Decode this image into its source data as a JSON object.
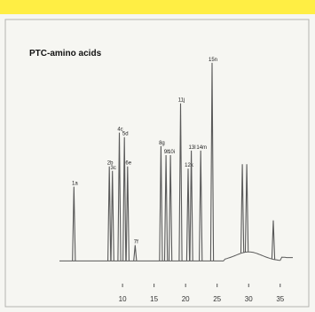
{
  "chart_data": {
    "type": "line",
    "title": "PTC-amino acids",
    "xlabel": "",
    "ylabel": "",
    "xlim": [
      0,
      37
    ],
    "ylim": [
      0,
      100
    ],
    "grid": false,
    "x_ticks": [
      "10",
      "15",
      "20",
      "25",
      "30",
      "35"
    ],
    "baseline": 3,
    "peaks": [
      {
        "x": 2.3,
        "height": 36,
        "label": "1a"
      },
      {
        "x": 7.9,
        "height": 45,
        "label": "2b"
      },
      {
        "x": 8.4,
        "height": 43,
        "label": "3c"
      },
      {
        "x": 9.5,
        "height": 60,
        "label": "4c"
      },
      {
        "x": 10.3,
        "height": 58,
        "label": "5d"
      },
      {
        "x": 10.8,
        "height": 45,
        "label": "6e"
      },
      {
        "x": 12.0,
        "height": 10,
        "label": "7f"
      },
      {
        "x": 16.1,
        "height": 54,
        "label": "8g"
      },
      {
        "x": 16.9,
        "height": 50,
        "label": "9h"
      },
      {
        "x": 17.6,
        "height": 50,
        "label": "10i"
      },
      {
        "x": 19.2,
        "height": 73,
        "label": "11j"
      },
      {
        "x": 20.4,
        "height": 44,
        "label": "12k"
      },
      {
        "x": 20.9,
        "height": 52,
        "label": "13l"
      },
      {
        "x": 22.4,
        "height": 52,
        "label": "14m"
      },
      {
        "x": 24.2,
        "height": 91,
        "label": "15n"
      },
      {
        "x": 29.0,
        "height": 46,
        "label": ""
      },
      {
        "x": 29.7,
        "height": 46,
        "label": ""
      },
      {
        "x": 33.9,
        "height": 21,
        "label": ""
      }
    ]
  },
  "colors": {
    "frame_top": "#ffee44",
    "paper": "#f6f6f2",
    "trace": "#5a5a5a",
    "border": "#888888"
  }
}
